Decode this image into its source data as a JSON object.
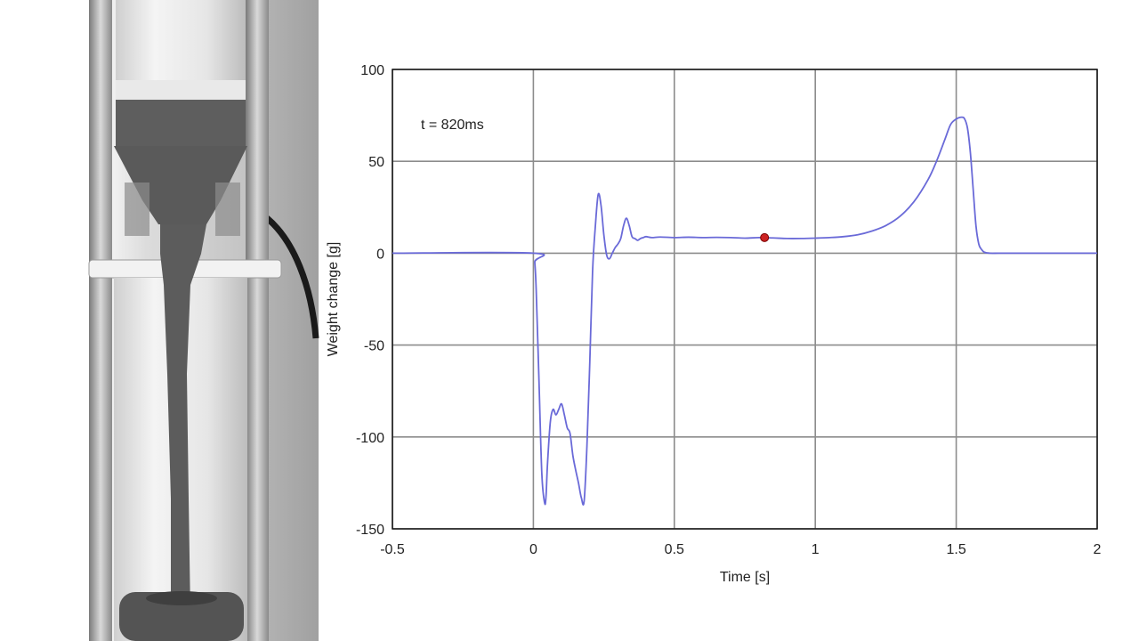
{
  "chart_data": {
    "type": "line",
    "xlabel": "Time [s]",
    "ylabel": "Weight change [g]",
    "xlim": [
      -0.5,
      2
    ],
    "ylim": [
      -150,
      100
    ],
    "xticks": [
      "-0.5",
      "0",
      "0.5",
      "1",
      "1.5",
      "2"
    ],
    "yticks": [
      "100",
      "50",
      "0",
      "-50",
      "-100",
      "-150"
    ],
    "grid": true,
    "annotation": "t = 820ms",
    "marker": {
      "x": 0.82,
      "y": 8.5,
      "color": "#cc2222"
    },
    "series": [
      {
        "color": "#6a6ad8",
        "x": [
          -0.5,
          0.0,
          0.005,
          0.01,
          0.02,
          0.03,
          0.04,
          0.045,
          0.05,
          0.06,
          0.07,
          0.08,
          0.09,
          0.1,
          0.11,
          0.12,
          0.13,
          0.14,
          0.15,
          0.16,
          0.17,
          0.18,
          0.19,
          0.2,
          0.21,
          0.22,
          0.23,
          0.24,
          0.25,
          0.26,
          0.27,
          0.28,
          0.29,
          0.3,
          0.31,
          0.32,
          0.33,
          0.34,
          0.35,
          0.36,
          0.37,
          0.38,
          0.39,
          0.4,
          0.42,
          0.45,
          0.5,
          0.55,
          0.6,
          0.65,
          0.7,
          0.75,
          0.8,
          0.85,
          0.9,
          0.95,
          1.0,
          1.05,
          1.1,
          1.15,
          1.2,
          1.25,
          1.3,
          1.35,
          1.4,
          1.43,
          1.46,
          1.48,
          1.5,
          1.52,
          1.53,
          1.54,
          1.55,
          1.56,
          1.57,
          1.58,
          1.59,
          1.6,
          1.62,
          1.65,
          1.7,
          1.8,
          1.9,
          2.0
        ],
        "y": [
          0,
          0,
          -5,
          -20,
          -70,
          -120,
          -136,
          -132,
          -115,
          -92,
          -85,
          -88,
          -85,
          -82,
          -88,
          -95,
          -98,
          -110,
          -118,
          -125,
          -133,
          -135,
          -105,
          -60,
          -10,
          15,
          32,
          26,
          10,
          -1,
          -3,
          0,
          3,
          5,
          8,
          15,
          19,
          15,
          9,
          8,
          7,
          8,
          8.5,
          9,
          8.5,
          8.8,
          8.5,
          8.7,
          8.5,
          8.6,
          8.5,
          8.2,
          8.5,
          8.3,
          8,
          8,
          8.2,
          8.5,
          9,
          10,
          12,
          15,
          20,
          28,
          40,
          50,
          62,
          70,
          73,
          74,
          73,
          68,
          55,
          35,
          15,
          5,
          2,
          0.5,
          0,
          0,
          0,
          0,
          0,
          0
        ]
      }
    ]
  }
}
